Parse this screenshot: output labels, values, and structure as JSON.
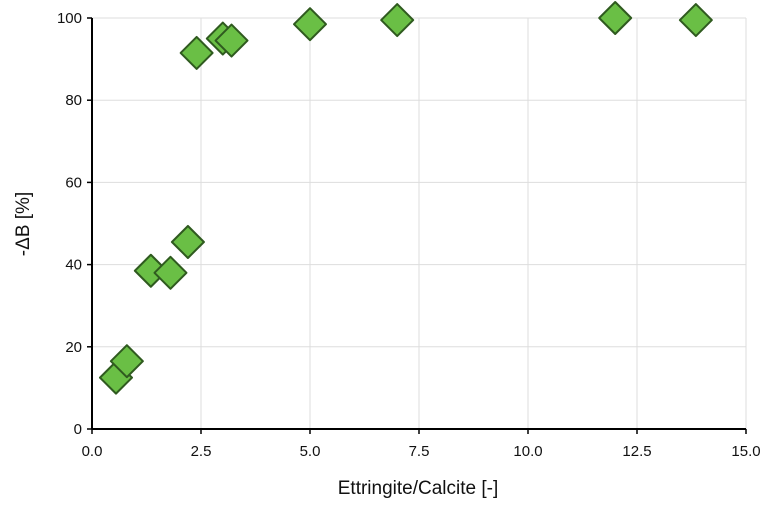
{
  "chart_data": {
    "type": "scatter",
    "title": "",
    "xlabel": "Ettringite/Calcite [-]",
    "ylabel": "-ΔB [%]",
    "xlim": [
      0,
      15
    ],
    "ylim": [
      0,
      100
    ],
    "grid": true,
    "x_ticks": [
      "0.0",
      "2.5",
      "5.0",
      "7.5",
      "10.0",
      "12.5",
      "15.0"
    ],
    "y_ticks": [
      "0",
      "20",
      "40",
      "60",
      "80",
      "100"
    ],
    "marker": "diamond",
    "colors": {
      "marker_fill": "#6abf45",
      "marker_edge": "#2f5a1f",
      "grid": "#dddddd",
      "axis": "#000000"
    },
    "points": [
      {
        "x": 0.55,
        "y": 12.5
      },
      {
        "x": 0.8,
        "y": 16.5
      },
      {
        "x": 1.35,
        "y": 38.5
      },
      {
        "x": 1.8,
        "y": 38.0
      },
      {
        "x": 2.2,
        "y": 45.5
      },
      {
        "x": 2.4,
        "y": 91.5
      },
      {
        "x": 3.0,
        "y": 95.0
      },
      {
        "x": 3.2,
        "y": 94.5
      },
      {
        "x": 5.0,
        "y": 98.5
      },
      {
        "x": 7.0,
        "y": 99.5
      },
      {
        "x": 12.0,
        "y": 100.0
      },
      {
        "x": 13.85,
        "y": 99.5
      }
    ]
  }
}
